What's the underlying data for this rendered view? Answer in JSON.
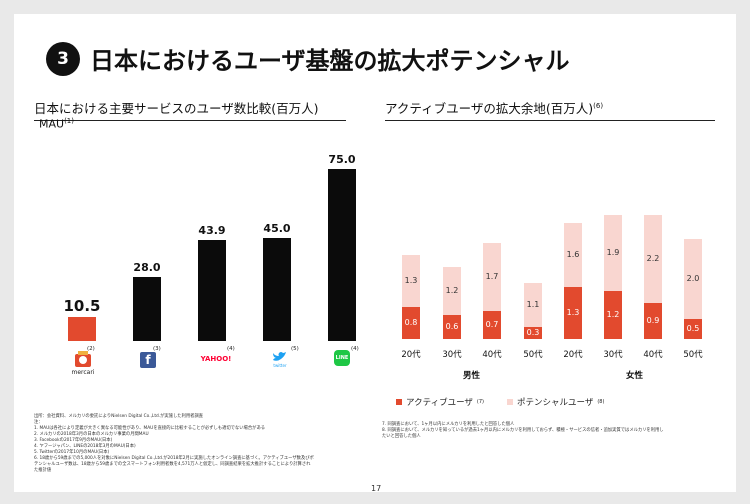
{
  "header": {
    "number": "3",
    "title": "日本におけるユーザ基盤の拡大ポテンシャル"
  },
  "left": {
    "heading": "日本における主要サービスのユーザ数比較(百万人)",
    "mau_label": "MAU",
    "mau_note": "(1)",
    "services": [
      {
        "logo_text": "mercari",
        "note": "(2)",
        "value_label": "10.5"
      },
      {
        "logo_text": "f",
        "note": "(3)",
        "value_label": "28.0"
      },
      {
        "logo_text": "YAHOO!",
        "note": "(4)",
        "value_label": "43.9"
      },
      {
        "logo_text": "twitter",
        "note": "(5)",
        "value_label": "45.0"
      },
      {
        "logo_text": "LINE",
        "note": "(4)",
        "value_label": "75.0"
      }
    ]
  },
  "right": {
    "heading": "アクティブユーザの拡大余地(百万人)",
    "heading_note": "(6)",
    "genders": [
      "男性",
      "女性"
    ],
    "legend": {
      "active": "アクティブユーザ",
      "active_note": "(7)",
      "potential": "ポテンシャルユーザ",
      "potential_note": "(8)"
    }
  },
  "chart_data": [
    {
      "type": "bar",
      "categories": [
        "mercari",
        "Facebook",
        "Yahoo! JAPAN",
        "Twitter",
        "LINE"
      ],
      "values": [
        10.5,
        28.0,
        43.9,
        45.0,
        75.0
      ],
      "highlight_color": "#e24a2e",
      "bar_color": "#0b0b0b",
      "ylim": [
        0,
        80
      ]
    },
    {
      "type": "bar",
      "stacked": true,
      "groups": [
        "男性",
        "女性"
      ],
      "categories": [
        "20代",
        "30代",
        "40代",
        "50代",
        "20代",
        "30代",
        "40代",
        "50代"
      ],
      "series": [
        {
          "name": "アクティブユーザ",
          "color": "#e24a2e",
          "values": [
            0.8,
            0.6,
            0.7,
            0.3,
            1.3,
            1.2,
            0.9,
            0.5
          ]
        },
        {
          "name": "ポテンシャルユーザ",
          "color": "#f9d6d0",
          "values": [
            1.3,
            1.2,
            1.7,
            1.1,
            1.6,
            1.9,
            2.2,
            2.0
          ]
        }
      ],
      "ylim": [
        0,
        3.2
      ]
    }
  ],
  "footnotes": {
    "left": [
      "出所：会社資料、メルカリの委託によりNielsen Digital Co.,Ltd.が実施した利用者調査",
      "注：",
      "1. MAUは各社により定義が大きく異なる可能性があり、MAUを直接的に比較することが必ずしも適切でない場合がある",
      "2. メルカリの2018年3月の日本のメルカリ事業の月間MAU",
      "3. Facebookの2017年9月のMAU(日本)",
      "4. ヤフージャパン、LINEの2018年3月のMAU(日本)",
      "5. Twitterの2017年10月のMAU(日本)",
      "6. 18歳から59歳までの5,000人を対象にNielsen Digital Co.,Ltd.が2018年2月に実施したオンライン調査に基づく。アクティブユーザ数及びポ",
      "テンシャルユーザ数は、18歳から59歳までの全スマートフォン利用者数を4,571万人と仮定し、同調査結果を拡大推計することにより計算され",
      "た推計値",
      "",
      ""
    ],
    "right": [
      "7. 同調査において、1ヶ月以内にメルカリを利用したと回答した個人",
      "8. 同調査において、メルカリを知っているが過去1ヶ月以内にメルカリを利用しておらず、積極・サービスの信者・追加実質ではメルカリを利用し",
      "たいと回答した個人"
    ]
  },
  "page_number": "17"
}
